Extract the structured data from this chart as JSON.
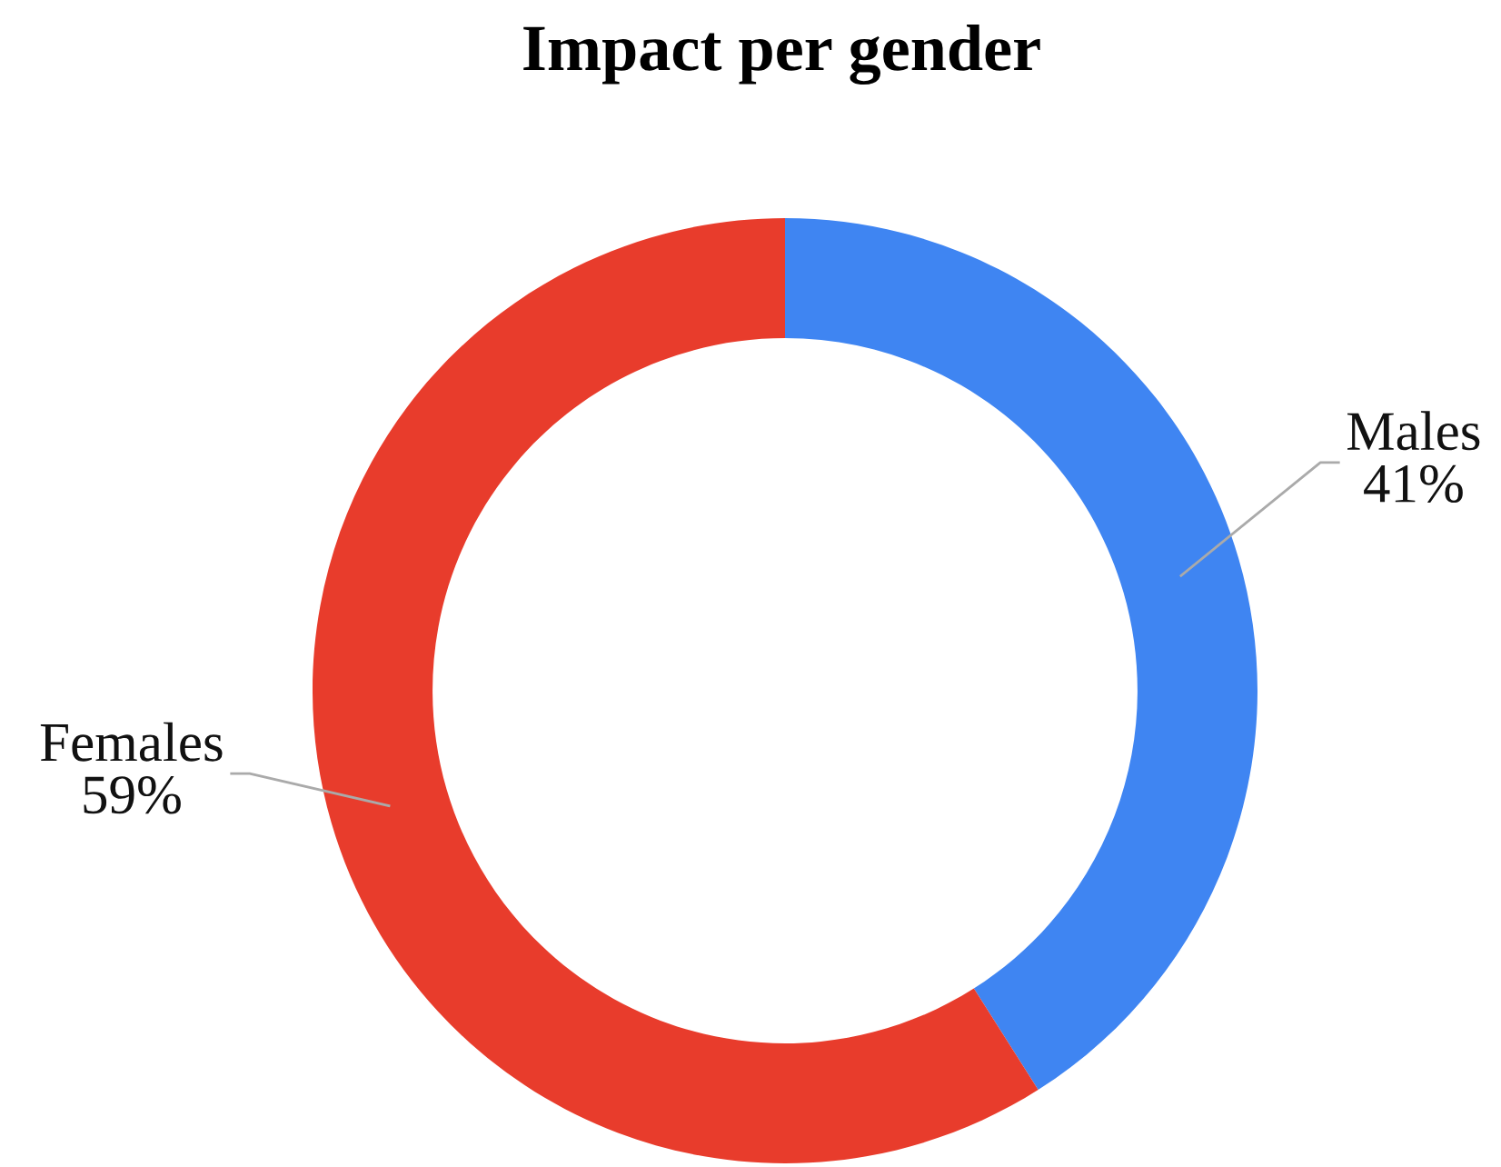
{
  "chart_data": {
    "type": "donut",
    "title": "Impact per gender",
    "categories": [
      "Males",
      "Females"
    ],
    "values": [
      41,
      59
    ],
    "colors": [
      "#3f85f2",
      "#e83c2c"
    ],
    "value_labels": [
      "41%",
      "59%"
    ]
  }
}
